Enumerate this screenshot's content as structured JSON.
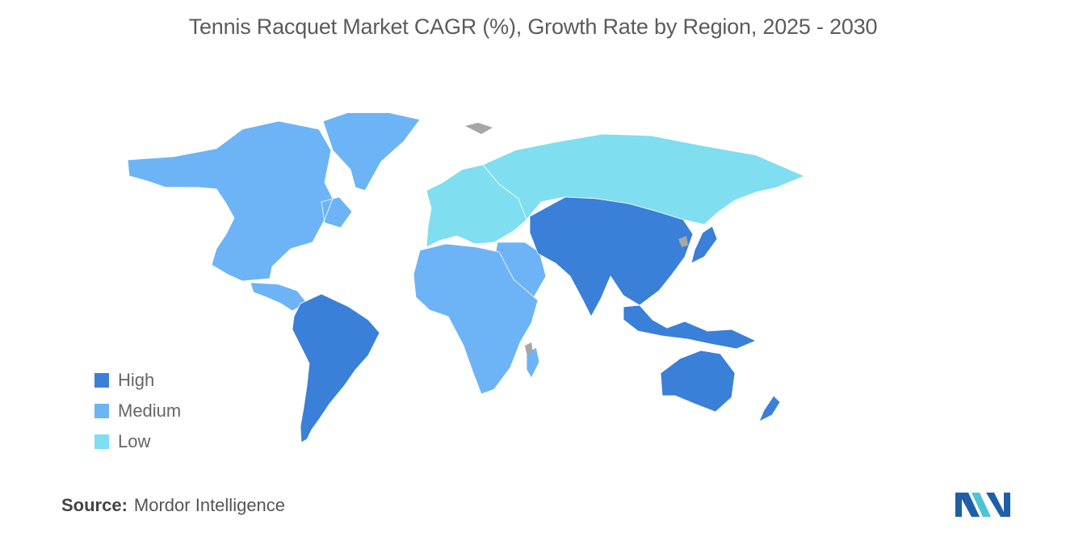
{
  "title": "Tennis Racquet Market CAGR (%), Growth Rate by Region, 2025 - 2030",
  "legend": [
    {
      "label": "High",
      "color": "#3a7fd8"
    },
    {
      "label": "Medium",
      "color": "#6cb4f5"
    },
    {
      "label": "Low",
      "color": "#7fdeef"
    }
  ],
  "colors": {
    "no_data": "#a6a6a6",
    "logo_primary": "#1f5fa8",
    "logo_secondary": "#4ec3d4"
  },
  "regions": [
    {
      "name": "North America",
      "level": "Medium"
    },
    {
      "name": "Greenland",
      "level": "Medium"
    },
    {
      "name": "South America",
      "level": "High"
    },
    {
      "name": "Europe",
      "level": "Low"
    },
    {
      "name": "Russia",
      "level": "Low"
    },
    {
      "name": "Middle East",
      "level": "Medium"
    },
    {
      "name": "Africa",
      "level": "Medium"
    },
    {
      "name": "Asia",
      "level": "High"
    },
    {
      "name": "Japan",
      "level": "High"
    },
    {
      "name": "Southeast Asia",
      "level": "High"
    },
    {
      "name": "Australia",
      "level": "High"
    },
    {
      "name": "New Zealand",
      "level": "High"
    }
  ],
  "source": {
    "label": "Source:",
    "value": "Mordor Intelligence"
  }
}
